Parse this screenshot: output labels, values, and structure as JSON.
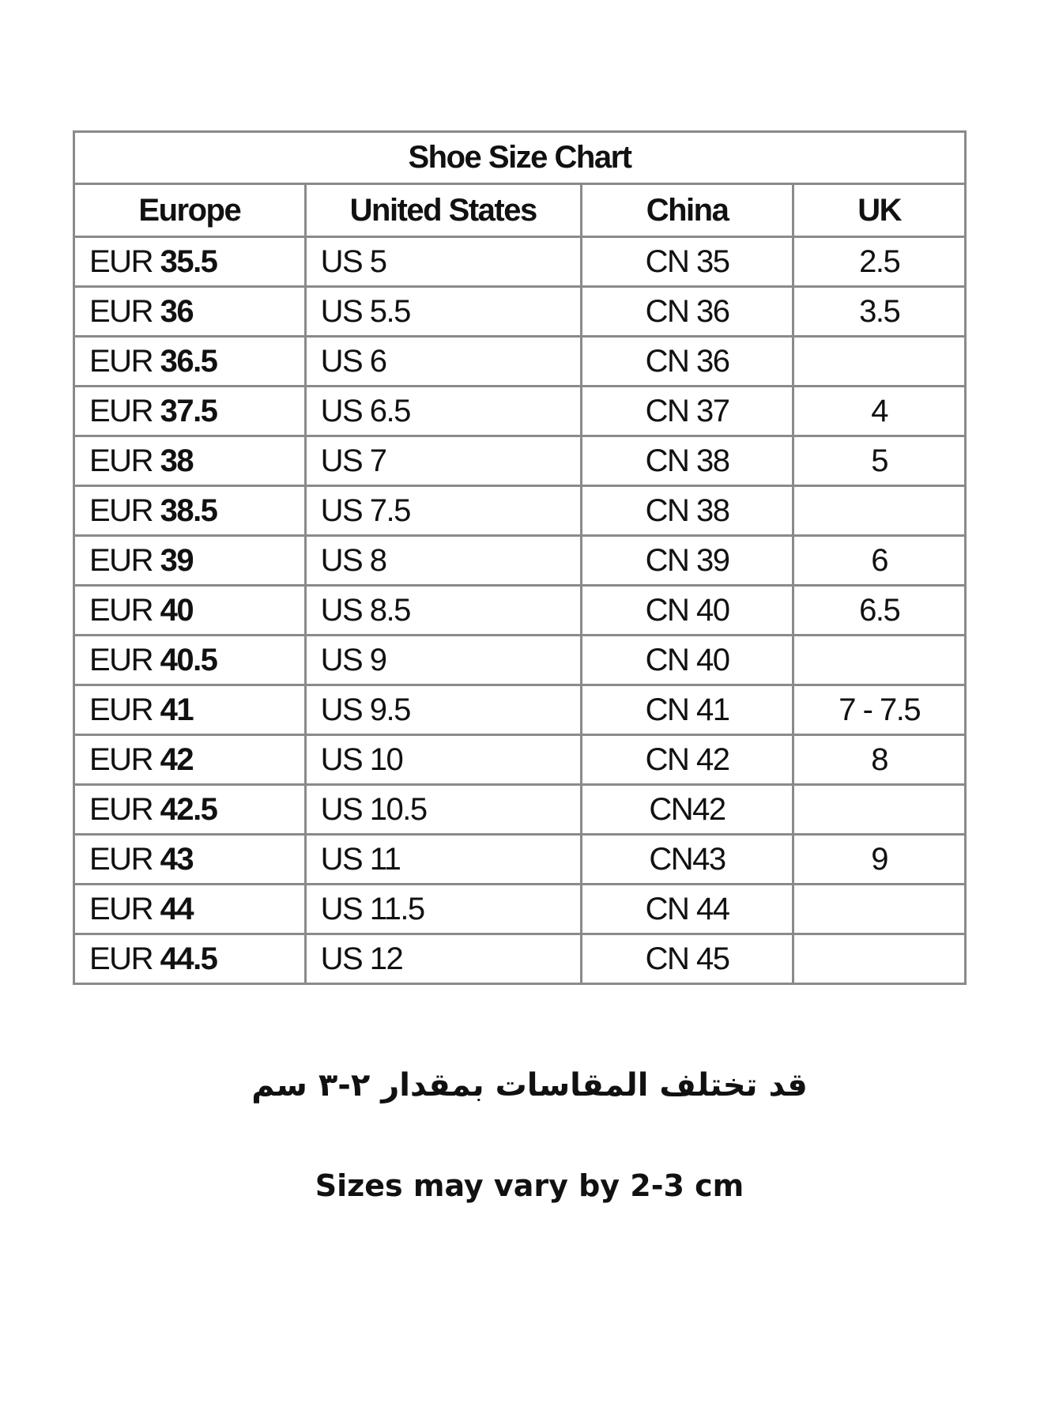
{
  "title": "Shoe Size Chart",
  "headers": [
    "Europe",
    "United States",
    "China",
    "UK"
  ],
  "rows": [
    {
      "eur_prefix": "EUR",
      "eur": "35.5",
      "us": "US 5",
      "cn": "CN 35",
      "uk": "2.5"
    },
    {
      "eur_prefix": "EUR",
      "eur": "36",
      "us": "US 5.5",
      "cn": "CN 36",
      "uk": "3.5"
    },
    {
      "eur_prefix": "EUR",
      "eur": "36.5",
      "us": "US 6",
      "cn": "CN 36",
      "uk": ""
    },
    {
      "eur_prefix": "EUR",
      "eur": "37.5",
      "us": "US 6.5",
      "cn": "CN 37",
      "uk": "4"
    },
    {
      "eur_prefix": "EUR",
      "eur": "38",
      "us": "US 7",
      "cn": "CN 38",
      "uk": "5"
    },
    {
      "eur_prefix": "EUR",
      "eur": "38.5",
      "us": "US 7.5",
      "cn": "CN 38",
      "uk": ""
    },
    {
      "eur_prefix": "EUR",
      "eur": "39",
      "us": "US 8",
      "cn": "CN 39",
      "uk": "6"
    },
    {
      "eur_prefix": "EUR",
      "eur": "40",
      "us": "US 8.5",
      "cn": "CN 40",
      "uk": "6.5"
    },
    {
      "eur_prefix": "EUR",
      "eur": "40.5",
      "us": "US 9",
      "cn": "CN 40",
      "uk": ""
    },
    {
      "eur_prefix": "EUR",
      "eur": "41",
      "us": "US 9.5",
      "cn": "CN 41",
      "uk": "7 - 7.5"
    },
    {
      "eur_prefix": "EUR",
      "eur": "42",
      "us": "US 10",
      "cn": "CN 42",
      "uk": "8"
    },
    {
      "eur_prefix": "EUR",
      "eur": "42.5",
      "us": "US 10.5",
      "cn": "CN42",
      "uk": ""
    },
    {
      "eur_prefix": "EUR",
      "eur": "43",
      "us": "US 11",
      "cn": "CN43",
      "uk": "9"
    },
    {
      "eur_prefix": "EUR",
      "eur": "44",
      "us": "US 11.5",
      "cn": "CN 44",
      "uk": ""
    },
    {
      "eur_prefix": "EUR",
      "eur": "44.5",
      "us": "US 12",
      "cn": "CN 45",
      "uk": ""
    }
  ],
  "note_arabic": "قد تختلف المقاسات بمقدار ٢-٣ سم",
  "note_english": "Sizes may vary by 2-3 cm"
}
